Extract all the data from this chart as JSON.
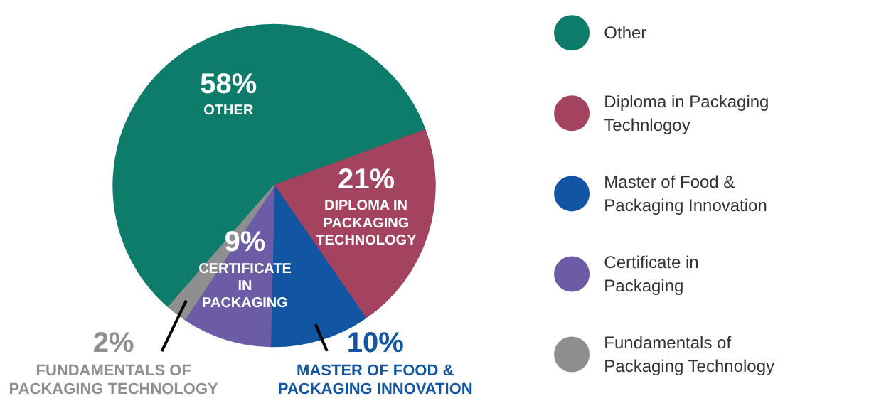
{
  "chart_data": {
    "type": "pie",
    "categories": [
      "Other",
      "Diploma in Packaging Technlogoy",
      "Master of Food & Packaging Innovation",
      "Certificate in Packaging",
      "Fundamentals of Packaging Technology"
    ],
    "values": [
      58,
      21,
      10,
      9,
      2
    ],
    "colors": [
      "#0e7c6b",
      "#a3435f",
      "#1256a3",
      "#6b5ca5",
      "#8f8f8f"
    ],
    "value_labels": [
      "58%",
      "21%",
      "10%",
      "9%",
      "2%"
    ],
    "annotations": [
      "OTHER",
      "DIPLOMA IN PACKAGING TECHNOLOGY",
      "MASTER OF FOOD & PACKAGING INNOVATION",
      "CERTIFICATE IN PACKAGING",
      "FUNDAMENTALS OF PACKAGING TECHNOLOGY"
    ],
    "legend": "right"
  }
}
